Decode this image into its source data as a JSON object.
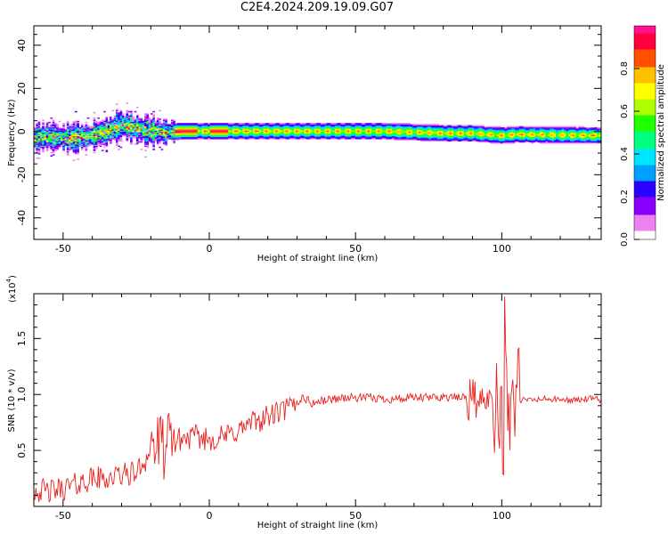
{
  "title": "C2E4.2024.209.19.09.G07",
  "chart_data": [
    {
      "type": "heatmap",
      "xlabel": "Height of straight line (km)",
      "ylabel": "Frequency (Hz)",
      "xlim": [
        -60,
        134
      ],
      "ylim": [
        -50,
        49
      ],
      "xticks": [
        -50,
        0,
        50,
        100
      ],
      "yticks": [
        -40,
        -20,
        0,
        20,
        40
      ],
      "colorbar": {
        "label": "Normalized spectral amplitude",
        "range": [
          0,
          1
        ],
        "ticks": [
          "0.0",
          "0.2",
          "0.4",
          "0.6",
          "0.8"
        ],
        "colormap": [
          "#ffffff",
          "#ee82ee",
          "#8a00ff",
          "#2a00ff",
          "#00a0ff",
          "#00e5ff",
          "#00ff80",
          "#20ff00",
          "#b0ff00",
          "#ffff00",
          "#ffc000",
          "#ff5000",
          "#ff0040",
          "#ff1090"
        ]
      },
      "ridge": [
        [
          -60,
          -3
        ],
        [
          -55,
          -2.5
        ],
        [
          -50,
          -3
        ],
        [
          -45,
          -3
        ],
        [
          -40,
          -2
        ],
        [
          -35,
          0
        ],
        [
          -30,
          3
        ],
        [
          -25,
          1
        ],
        [
          -20,
          0
        ],
        [
          -15,
          -0.5
        ],
        [
          -10,
          0
        ],
        [
          0,
          0
        ],
        [
          20,
          0
        ],
        [
          40,
          0
        ],
        [
          60,
          0
        ],
        [
          80,
          -1
        ],
        [
          90,
          -1
        ],
        [
          100,
          -2
        ],
        [
          105,
          -1.5
        ],
        [
          134,
          -2
        ]
      ]
    },
    {
      "type": "line",
      "xlabel": "Height of straight line (km)",
      "ylabel": "SNR (10 * v/v)",
      "y_multiplier": "(x10",
      "y_multiplier_exp": "4",
      "y_multiplier_close": ")",
      "xlim": [
        -60,
        134
      ],
      "ylim": [
        0,
        1.9
      ],
      "xticks": [
        -50,
        0,
        50,
        100
      ],
      "yticks": [
        "0.5",
        "1.0",
        "1.5"
      ],
      "series": [
        {
          "color": "#e8231f",
          "x": [
            -60,
            -55,
            -50,
            -45,
            -40,
            -35,
            -30,
            -25,
            -21,
            -20,
            -15,
            -12,
            -10,
            -5,
            0,
            5,
            10,
            15,
            20,
            25,
            30,
            32,
            35,
            40,
            45,
            50,
            55,
            60,
            65,
            70,
            75,
            80,
            85,
            88,
            90,
            92,
            95,
            98,
            100,
            102,
            103,
            105,
            106,
            110,
            115,
            120,
            125,
            130,
            134
          ],
          "y": [
            0.15,
            0.13,
            0.16,
            0.2,
            0.25,
            0.25,
            0.28,
            0.3,
            0.45,
            0.55,
            0.52,
            0.58,
            0.6,
            0.62,
            0.6,
            0.62,
            0.68,
            0.75,
            0.8,
            0.85,
            0.92,
            0.98,
            0.92,
            0.95,
            0.97,
            0.97,
            0.97,
            0.96,
            0.96,
            0.97,
            0.97,
            0.98,
            0.97,
            0.98,
            0.96,
            0.95,
            0.96,
            0.97,
            1.0,
            0.95,
            0.9,
            0.97,
            0.95,
            0.95,
            0.96,
            0.95,
            0.95,
            0.96,
            0.95
          ]
        }
      ]
    }
  ]
}
